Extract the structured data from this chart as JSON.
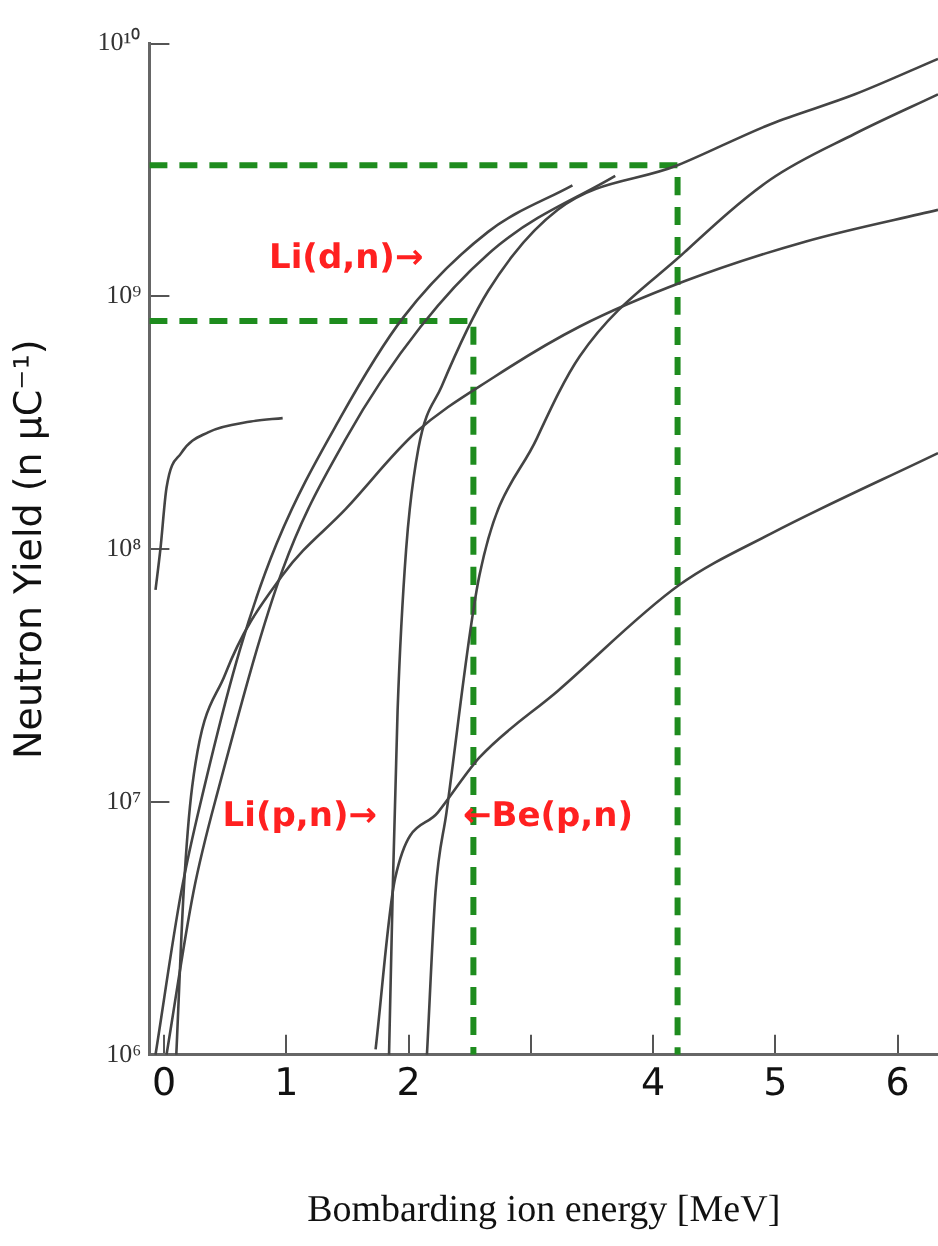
{
  "chart_data": {
    "type": "line",
    "xlabel": "Bombarding ion energy [MeV]",
    "ylabel": "Neutron Yield (n μC⁻¹)",
    "log": "y",
    "grid": false,
    "legend": false,
    "marker": "none",
    "line_style": "solid",
    "xlim": [
      -0.12,
      6.33
    ],
    "xticks": [
      0,
      1,
      2,
      {
        "value": 3,
        "label": null
      },
      4,
      5,
      6
    ],
    "ylim": [
      1000000,
      10000000000
    ],
    "yticks": [
      {
        "value": 1000000,
        "label": "10⁶"
      },
      {
        "value": 10000000,
        "label": "10⁷"
      },
      {
        "value": 100000000,
        "label": "10⁸"
      },
      {
        "value": 1000000000,
        "label": "10⁹"
      },
      {
        "value": 10000000000,
        "label": "10¹⁰"
      }
    ],
    "series": [
      {
        "color": "#444444",
        "x": [
          -0.07,
          0.14,
          0.33,
          0.62,
          0.92,
          1.44,
          1.96,
          2.65,
          3.34
        ],
        "values": [
          1000000,
          4400000,
          11500000,
          40000000,
          105000000,
          330000000,
          830000000,
          1800000000,
          2750000000
        ]
      },
      {
        "color": "#444444",
        "x": [
          0.02,
          0.24,
          0.45,
          0.97,
          1.49,
          2.1,
          2.74,
          3.69
        ],
        "values": [
          1000000,
          4400000,
          11500000,
          83000000,
          275000000,
          760000000,
          1600000000,
          3000000000
        ]
      },
      {
        "color": "#444444",
        "x": [
          1.84,
          1.87,
          1.91,
          1.98,
          2.08,
          2.27,
          2.65,
          3.22,
          4.2,
          4.96,
          5.65,
          6.33
        ],
        "values": [
          1000000,
          4400000,
          23000000,
          100000000,
          250000000,
          440000000,
          1050000000,
          2200000000,
          3300000000,
          4800000000,
          6300000000,
          8700000000
        ]
      },
      {
        "color": "#444444",
        "x": [
          2.15,
          2.22,
          2.31,
          2.58,
          3.05,
          3.4,
          4.26,
          4.96,
          5.65,
          6.33
        ],
        "values": [
          1000000,
          4400000,
          9100000,
          79000000,
          275000000,
          580000000,
          1500000000,
          2900000000,
          4400000000,
          6300000000
        ]
      },
      {
        "color": "#444444",
        "x": [
          0.1,
          0.16,
          0.23,
          0.5,
          0.97,
          1.49,
          2.06,
          2.7,
          3.4,
          4.26,
          5.25,
          6.33
        ],
        "values": [
          1000000,
          4400000,
          11500000,
          32000000,
          79000000,
          145000000,
          290000000,
          480000000,
          760000000,
          1150000000,
          1650000000,
          2200000000
        ]
      },
      {
        "color": "#444444",
        "x": [
          -0.07,
          -0.03,
          0.02,
          0.14,
          0.36,
          0.71,
          0.97
        ],
        "values": [
          69000000,
          100000000,
          175000000,
          240000000,
          290000000,
          320000000,
          330000000
        ]
      },
      {
        "color": "#444444",
        "x": [
          1.73,
          1.89,
          2.24,
          2.58,
          3.22,
          4.21,
          4.96,
          6.33
        ],
        "values": [
          1050000,
          5000000,
          9100000,
          15000000,
          27500000,
          72000000,
          115000000,
          240000000
        ]
      },
      {
        "color": "#1e8c1e",
        "line_style": "dashed",
        "x": [
          -0.12,
          2.53,
          2.53
        ],
        "values": [
          800000000,
          800000000,
          1000000
        ]
      },
      {
        "color": "#1e8c1e",
        "line_style": "dashed",
        "x": [
          -0.12,
          4.2,
          4.2
        ],
        "values": [
          3300000000,
          3300000000,
          1000000
        ]
      }
    ],
    "annotations": [
      "Li(d,n)→",
      "Li(p,n)→",
      "←Be(p,n)"
    ]
  }
}
